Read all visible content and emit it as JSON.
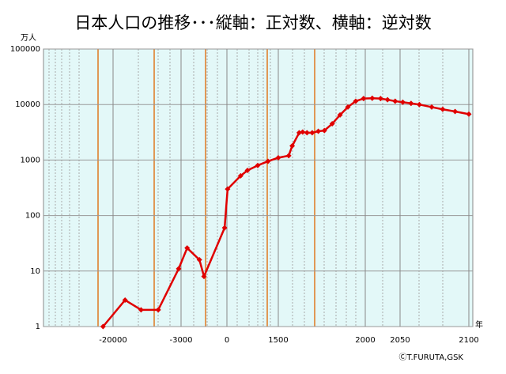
{
  "chart_data": {
    "type": "line",
    "title": "日本人口の推移･･･縦軸：正対数、横軸：逆対数",
    "y_label": "万人",
    "x_label": "年",
    "credit": "ⒸT.FURUTA,GSK",
    "y_scale": "log",
    "grid": true,
    "ylim": [
      1,
      100000
    ],
    "yticks": [
      1,
      10,
      100,
      1000,
      10000,
      100000
    ],
    "xticks": [
      -20000,
      -3000,
      0,
      1500,
      2000,
      2050,
      2100
    ],
    "series": [
      {
        "name": "日本人口",
        "color": "#e00000",
        "x": [
          -22500,
          -17000,
          -13000,
          -8700,
          -3600,
          -2600,
          -1800,
          -1500,
          -150,
          20,
          400,
          600,
          900,
          1200,
          1500,
          1560,
          1580,
          1620,
          1640,
          1665,
          1695,
          1730,
          1765,
          1810,
          1855,
          1900,
          1945,
          1990,
          2010,
          2022,
          2032,
          2043,
          2052,
          2058,
          2064,
          2073,
          2081,
          2090,
          2100
        ],
        "values": [
          1,
          3,
          2,
          2,
          11,
          26,
          16,
          8,
          60,
          300,
          520,
          650,
          800,
          950,
          1100,
          1200,
          1800,
          3100,
          3200,
          3100,
          3100,
          3300,
          3400,
          4500,
          6500,
          9000,
          11500,
          12800,
          13000,
          12800,
          12200,
          11500,
          11000,
          10500,
          10000,
          9000,
          8200,
          7500,
          6700
        ]
      }
    ]
  }
}
